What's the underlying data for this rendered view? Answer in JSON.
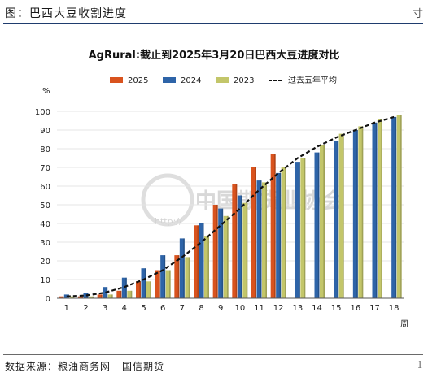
{
  "header": {
    "title": "图：巴西大豆收割进度",
    "corner_glyph": "寸"
  },
  "footer": {
    "source_label": "数据来源：粮油商务网",
    "org": "国信期货",
    "corner_glyph": "1"
  },
  "watermark": {
    "text": "中国期货业协会",
    "url": "http://"
  },
  "chart_data": {
    "type": "bar",
    "title": "AgRural:截止到2025年3月20日巴西大豆进度对比",
    "ylabel": "%",
    "xlabel": "周",
    "ylim": [
      0,
      100
    ],
    "yticks": [
      0,
      10,
      20,
      30,
      40,
      50,
      60,
      70,
      80,
      90,
      100
    ],
    "categories": [
      "1",
      "2",
      "3",
      "4",
      "5",
      "6",
      "7",
      "8",
      "9",
      "10",
      "11",
      "12",
      "13",
      "14",
      "15",
      "16",
      "17",
      "18"
    ],
    "legend_position": "top",
    "series": [
      {
        "name": "2025",
        "type": "bar",
        "color": "#d9531e",
        "values": [
          1,
          1,
          2,
          4,
          9,
          15,
          23,
          39,
          50,
          61,
          70,
          77,
          null,
          null,
          null,
          null,
          null,
          null
        ]
      },
      {
        "name": "2024",
        "type": "bar",
        "color": "#2e64a8",
        "values": [
          2,
          3,
          6,
          11,
          16,
          23,
          32,
          40,
          48,
          55,
          63,
          67,
          73,
          78,
          84,
          90,
          94,
          97
        ]
      },
      {
        "name": "2023",
        "type": "bar",
        "color": "#c3c66a",
        "values": [
          1,
          1,
          2,
          4,
          9,
          15,
          22,
          33,
          44,
          51,
          62,
          70,
          75,
          82,
          88,
          92,
          96,
          98
        ]
      },
      {
        "name": "过去五年平均",
        "type": "line",
        "color": "#111111",
        "style": "dashed",
        "values": [
          1,
          1.5,
          3,
          6,
          10,
          15,
          22,
          30,
          39,
          48,
          58,
          67,
          75,
          81,
          86,
          90,
          94,
          97
        ]
      }
    ]
  }
}
